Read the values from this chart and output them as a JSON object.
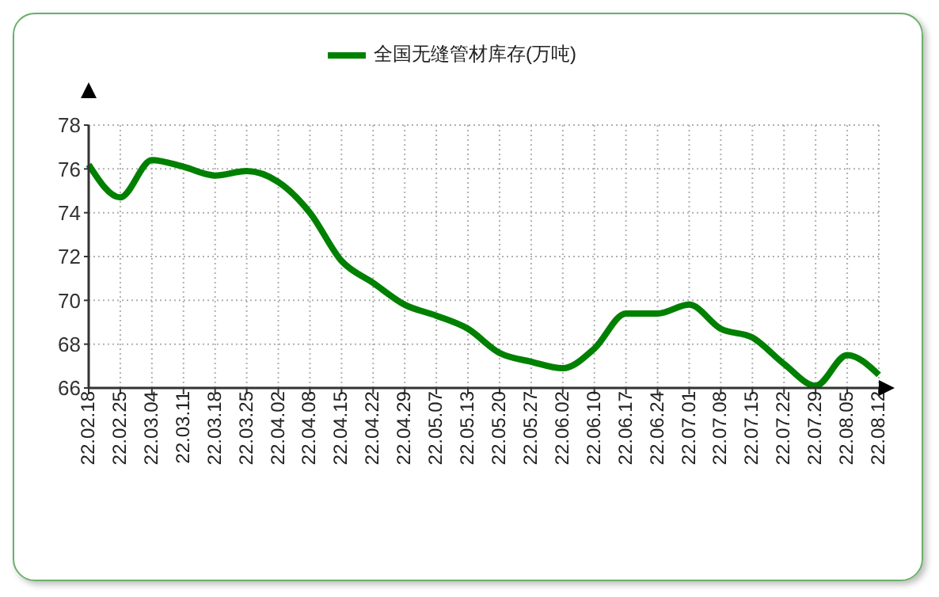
{
  "chart_data": {
    "type": "line",
    "categories": [
      "22.02.18",
      "22.02.25",
      "22.03.04",
      "22.03.11",
      "22.03.18",
      "22.03.25",
      "22.04.02",
      "22.04.08",
      "22.04.15",
      "22.04.22",
      "22.04.29",
      "22.05.07",
      "22.05.13",
      "22.05.20",
      "22.05.27",
      "22.06.02",
      "22.06.10",
      "22.06.17",
      "22.06.24",
      "22.07.01",
      "22.07.08",
      "22.07.15",
      "22.07.22",
      "22.07.29",
      "22.08.05",
      "22.08.12"
    ],
    "series": [
      {
        "name": "全国无缝管材库存(万吨)",
        "color": "#008000",
        "values": [
          76.2,
          74.7,
          76.4,
          76.1,
          75.7,
          75.9,
          75.4,
          74.0,
          71.8,
          70.8,
          69.8,
          69.3,
          68.7,
          67.6,
          67.2,
          66.9,
          67.8,
          69.4,
          69.4,
          69.8,
          68.7,
          68.3,
          67.1,
          66.1,
          67.5,
          66.6
        ]
      }
    ],
    "ylim": [
      66,
      78
    ],
    "yticks": [
      66,
      68,
      70,
      72,
      74,
      76,
      78
    ],
    "grid": true,
    "legend": "top",
    "marker": "none",
    "line_style": "solid"
  }
}
